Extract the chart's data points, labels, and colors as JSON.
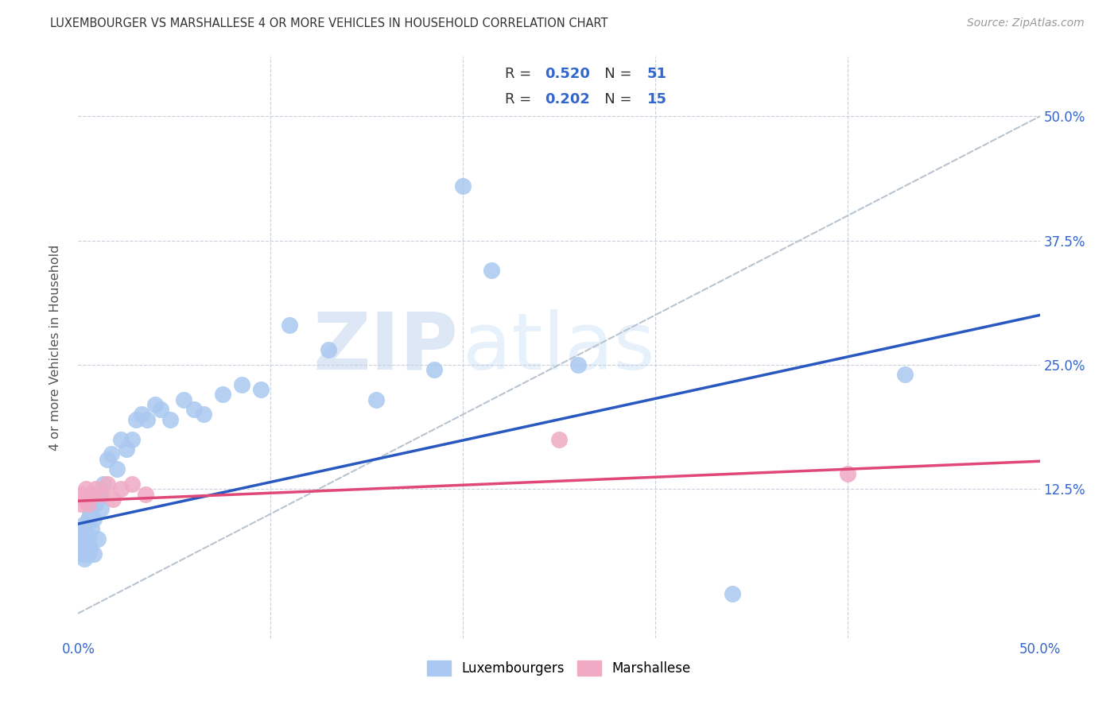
{
  "title": "LUXEMBOURGER VS MARSHALLESE 4 OR MORE VEHICLES IN HOUSEHOLD CORRELATION CHART",
  "source": "Source: ZipAtlas.com",
  "ylabel": "4 or more Vehicles in Household",
  "xlim": [
    0.0,
    0.5
  ],
  "ylim": [
    -0.025,
    0.56
  ],
  "blue_scatter_color": "#aac8f0",
  "pink_scatter_color": "#f0aac4",
  "blue_line_color": "#2858c0",
  "pink_line_color": "#e04878",
  "dashed_line_color": "#b8c4d0",
  "grid_color": "#c8d0dc",
  "watermark_zip_color": "#c8d8f0",
  "watermark_atlas_color": "#d0e4f8",
  "blue_r": "0.520",
  "blue_n": "51",
  "pink_r": "0.202",
  "pink_n": "15",
  "text_blue_color": "#3366cc",
  "label_color": "#555555",
  "title_color": "#333333",
  "source_color": "#999999",
  "lux_x": [
    0.001,
    0.001,
    0.002,
    0.002,
    0.003,
    0.003,
    0.003,
    0.004,
    0.004,
    0.005,
    0.005,
    0.005,
    0.006,
    0.006,
    0.007,
    0.007,
    0.008,
    0.008,
    0.009,
    0.01,
    0.01,
    0.011,
    0.012,
    0.013,
    0.015,
    0.017,
    0.02,
    0.022,
    0.025,
    0.028,
    0.03,
    0.033,
    0.036,
    0.04,
    0.043,
    0.048,
    0.055,
    0.06,
    0.065,
    0.075,
    0.085,
    0.095,
    0.11,
    0.13,
    0.155,
    0.185,
    0.2,
    0.215,
    0.26,
    0.34,
    0.43
  ],
  "lux_y": [
    0.065,
    0.08,
    0.06,
    0.075,
    0.055,
    0.065,
    0.09,
    0.07,
    0.085,
    0.06,
    0.075,
    0.095,
    0.065,
    0.1,
    0.085,
    0.105,
    0.06,
    0.095,
    0.11,
    0.075,
    0.115,
    0.12,
    0.105,
    0.13,
    0.155,
    0.16,
    0.145,
    0.175,
    0.165,
    0.175,
    0.195,
    0.2,
    0.195,
    0.21,
    0.205,
    0.195,
    0.215,
    0.205,
    0.2,
    0.22,
    0.23,
    0.225,
    0.29,
    0.265,
    0.215,
    0.245,
    0.43,
    0.345,
    0.25,
    0.02,
    0.24
  ],
  "mar_x": [
    0.001,
    0.002,
    0.003,
    0.004,
    0.005,
    0.007,
    0.009,
    0.012,
    0.015,
    0.018,
    0.022,
    0.028,
    0.035,
    0.25,
    0.4
  ],
  "mar_y": [
    0.11,
    0.12,
    0.115,
    0.125,
    0.11,
    0.12,
    0.125,
    0.12,
    0.13,
    0.115,
    0.125,
    0.13,
    0.12,
    0.175,
    0.14
  ]
}
